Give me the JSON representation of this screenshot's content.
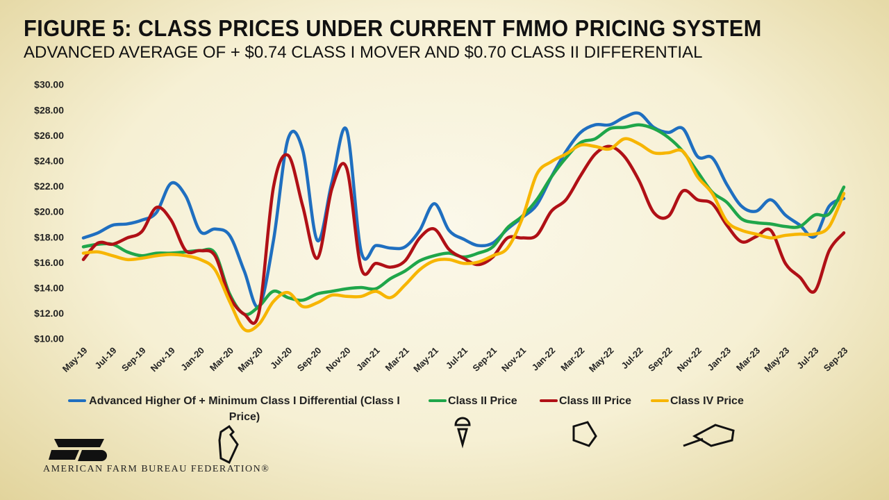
{
  "chart_data": {
    "type": "line",
    "title": "FIGURE 5: CLASS PRICES UNDER CURRENT FMMO PRICING SYSTEM",
    "subtitle": "ADVANCED AVERAGE OF + $0.74 CLASS I MOVER AND $0.70 CLASS II DIFFERENTIAL",
    "footer": "AMERICAN FARM BUREAU FEDERATION®",
    "categories": [
      "May-19",
      null,
      "Jul-19",
      null,
      "Sep-19",
      null,
      "Nov-19",
      null,
      "Jan-20",
      null,
      "Mar-20",
      null,
      "May-20",
      null,
      "Jul-20",
      null,
      "Sep-20",
      null,
      "Nov-20",
      null,
      "Jan-21",
      null,
      "Mar-21",
      null,
      "May-21",
      null,
      "Jul-21",
      null,
      "Sep-21",
      null,
      "Nov-21",
      null,
      "Jan-22",
      null,
      "Mar-22",
      null,
      "May-22",
      null,
      "Jul-22",
      null,
      "Sep-22",
      null,
      "Nov-22",
      null,
      "Jan-23",
      null,
      "Mar-23",
      null,
      "May-23",
      null,
      "Jul-23",
      null,
      "Sep-23"
    ],
    "series": [
      {
        "name": "Advanced Higher Of + Minimum Class I Differential (Class I Price)",
        "color": "#1f6fc0",
        "values": [
          18.0,
          18.4,
          19.0,
          19.1,
          19.4,
          20.0,
          22.3,
          21.3,
          18.5,
          18.7,
          18.2,
          15.4,
          12.6,
          17.8,
          25.8,
          24.9,
          17.8,
          22.4,
          26.5,
          16.9,
          17.4,
          17.2,
          17.3,
          18.6,
          20.7,
          18.6,
          17.9,
          17.4,
          17.6,
          18.7,
          19.6,
          20.6,
          22.8,
          24.8,
          26.3,
          26.9,
          26.9,
          27.5,
          27.8,
          26.7,
          26.3,
          26.6,
          24.4,
          24.3,
          22.2,
          20.5,
          20.1,
          21.0,
          19.8,
          19.0,
          18.1,
          20.5,
          21.1
        ]
      },
      {
        "name": "Class II Price",
        "color": "#1fa64a",
        "values": [
          17.3,
          17.5,
          17.5,
          16.9,
          16.6,
          16.8,
          16.8,
          16.9,
          17.0,
          16.8,
          13.6,
          12.0,
          12.6,
          13.8,
          13.3,
          13.1,
          13.6,
          13.8,
          14.0,
          14.1,
          14.0,
          14.8,
          15.4,
          16.2,
          16.6,
          16.8,
          16.5,
          16.8,
          17.3,
          18.8,
          19.7,
          21.0,
          22.8,
          24.3,
          25.5,
          25.8,
          26.6,
          26.7,
          26.9,
          26.6,
          25.9,
          24.8,
          23.2,
          21.6,
          20.8,
          19.5,
          19.2,
          19.1,
          18.9,
          18.9,
          19.8,
          19.9,
          22.0
        ]
      },
      {
        "name": "Class III Price",
        "color": "#b01016",
        "values": [
          16.3,
          17.6,
          17.5,
          18.0,
          18.5,
          20.4,
          19.4,
          17.0,
          17.0,
          16.6,
          13.4,
          12.0,
          12.1,
          22.0,
          24.5,
          20.5,
          16.4,
          21.9,
          23.5,
          15.6,
          16.0,
          15.7,
          16.2,
          18.0,
          18.7,
          17.1,
          16.4,
          15.9,
          16.5,
          18.0,
          18.0,
          18.2,
          20.1,
          21.0,
          22.9,
          24.6,
          25.2,
          24.4,
          22.5,
          20.0,
          19.7,
          21.7,
          21.0,
          20.7,
          19.0,
          17.7,
          18.1,
          18.6,
          16.0,
          14.9,
          13.8,
          17.0,
          18.4
        ]
      },
      {
        "name": "Class IV Price",
        "color": "#f7b500",
        "values": [
          16.8,
          16.9,
          16.6,
          16.3,
          16.4,
          16.6,
          16.7,
          16.6,
          16.3,
          15.5,
          13.0,
          10.8,
          11.2,
          13.0,
          13.7,
          12.6,
          12.9,
          13.5,
          13.4,
          13.4,
          13.8,
          13.3,
          14.3,
          15.5,
          16.2,
          16.3,
          16.0,
          16.1,
          16.6,
          17.2,
          19.5,
          23.0,
          24.0,
          24.6,
          25.3,
          25.2,
          25.0,
          25.8,
          25.4,
          24.7,
          24.7,
          24.8,
          22.8,
          21.5,
          19.3,
          18.6,
          18.3,
          18.0,
          18.2,
          18.3,
          18.3,
          18.9,
          21.5
        ]
      }
    ],
    "ylim": [
      10,
      30
    ],
    "yticks": [
      {
        "value": 10,
        "label": "$10.00"
      },
      {
        "value": 12,
        "label": "$12.00"
      },
      {
        "value": 14,
        "label": "$14.00"
      },
      {
        "value": 16,
        "label": "$16.00"
      },
      {
        "value": 18,
        "label": "$18.00"
      },
      {
        "value": 20,
        "label": "$20.00"
      },
      {
        "value": 22,
        "label": "$22.00"
      },
      {
        "value": 24,
        "label": "$24.00"
      },
      {
        "value": 26,
        "label": "$26.00"
      },
      {
        "value": 28,
        "label": "$28.00"
      },
      {
        "value": 30,
        "label": "$30.00"
      }
    ],
    "grid": false,
    "legend": "bottom"
  }
}
